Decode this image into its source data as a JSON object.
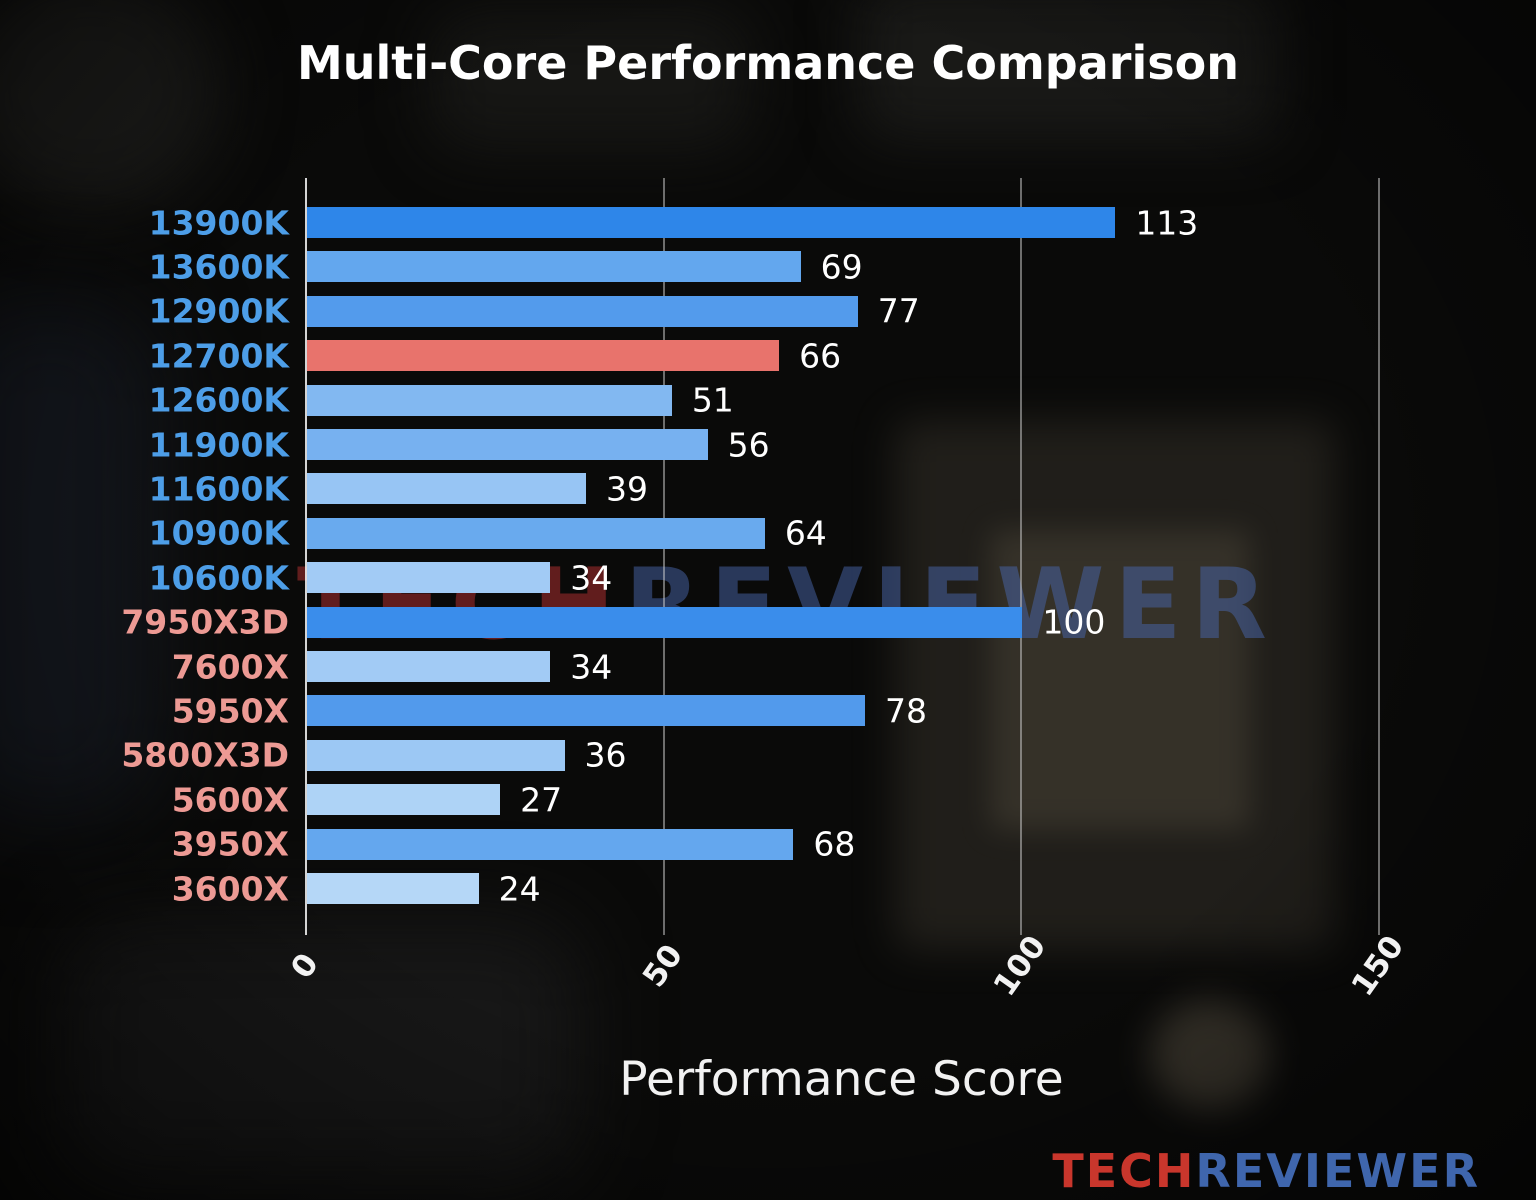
{
  "title": "Multi-Core Performance Comparison",
  "watermark": {
    "tech": "TECH",
    "reviewer": "REVIEWER"
  },
  "logo": {
    "tech": "TECH",
    "reviewer": "REVIEWER"
  },
  "colors": {
    "background": "#0a0a09",
    "title_text": "#ffffff",
    "value_text": "#ffffff",
    "grid": "#d2d2d2",
    "intel_label": "#4d9ee8",
    "amd_label": "#ed9a94",
    "highlight_bar": "#e8736c",
    "logo_tech": "#c9362c",
    "logo_reviewer": "#3f66ad"
  },
  "chart_data": {
    "type": "bar",
    "orientation": "horizontal",
    "title": "Multi-Core Performance Comparison",
    "xlabel": "Performance Score",
    "ylabel": "",
    "xlim": [
      0,
      150
    ],
    "xticks": [
      0,
      50,
      100,
      150
    ],
    "grid": true,
    "legend": "none",
    "categories": [
      "13900K",
      "13600K",
      "12900K",
      "12700K",
      "12600K",
      "11900K",
      "11600K",
      "10900K",
      "10600K",
      "7950X3D",
      "7600X",
      "5950X",
      "5800X3D",
      "5600X",
      "3950X",
      "3600X"
    ],
    "values": [
      113,
      69,
      77,
      66,
      51,
      56,
      39,
      64,
      34,
      100,
      34,
      78,
      36,
      27,
      68,
      24
    ],
    "highlight": {
      "category": "12700K",
      "value": 66,
      "color": "#e8736c"
    },
    "bar_colors": [
      "#2e86e9",
      "#63a7ee",
      "#539bec",
      "#e8736c",
      "#82b8f1",
      "#77b1f0",
      "#97c5f4",
      "#69aaee",
      "#a2cbf5",
      "#3a8deb",
      "#a2cbf5",
      "#529aec",
      "#9cc8f4",
      "#aed3f6",
      "#64a7ee",
      "#b5d7f7"
    ],
    "label_colors": [
      "#4d9ee8",
      "#4d9ee8",
      "#4d9ee8",
      "#4d9ee8",
      "#4d9ee8",
      "#4d9ee8",
      "#4d9ee8",
      "#4d9ee8",
      "#4d9ee8",
      "#ed9a94",
      "#ed9a94",
      "#ed9a94",
      "#ed9a94",
      "#ed9a94",
      "#ed9a94",
      "#ed9a94"
    ]
  }
}
